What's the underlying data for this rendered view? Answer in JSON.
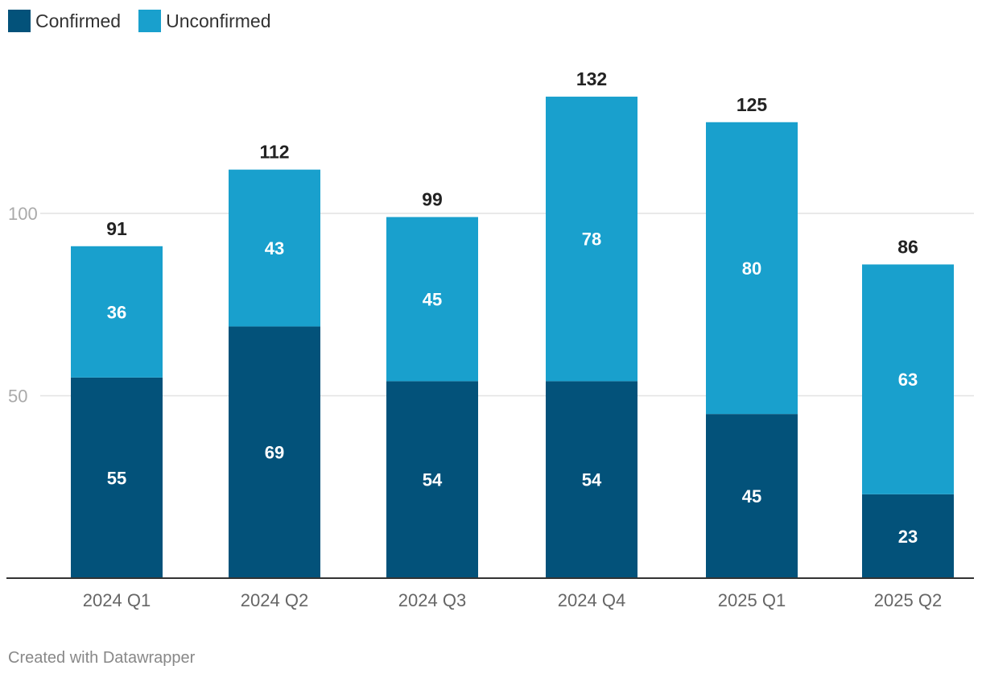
{
  "legend": {
    "items": [
      {
        "label": "Confirmed",
        "color": "#03527a"
      },
      {
        "label": "Unconfirmed",
        "color": "#19a0cd"
      }
    ]
  },
  "footer": {
    "text": "Created with Datawrapper"
  },
  "chart_data": {
    "type": "bar",
    "stacked": true,
    "categories": [
      "2024 Q1",
      "2024 Q2",
      "2024 Q3",
      "2024 Q4",
      "2025 Q1",
      "2025 Q2"
    ],
    "series": [
      {
        "name": "Confirmed",
        "color": "#03527a",
        "values": [
          55,
          69,
          54,
          54,
          45,
          23
        ]
      },
      {
        "name": "Unconfirmed",
        "color": "#19a0cd",
        "values": [
          36,
          43,
          45,
          78,
          80,
          63
        ]
      }
    ],
    "totals": [
      91,
      112,
      99,
      132,
      125,
      86
    ],
    "y_ticks": [
      50,
      100
    ],
    "ylim": [
      0,
      132
    ],
    "grid": true,
    "legend_position": "top-left"
  }
}
